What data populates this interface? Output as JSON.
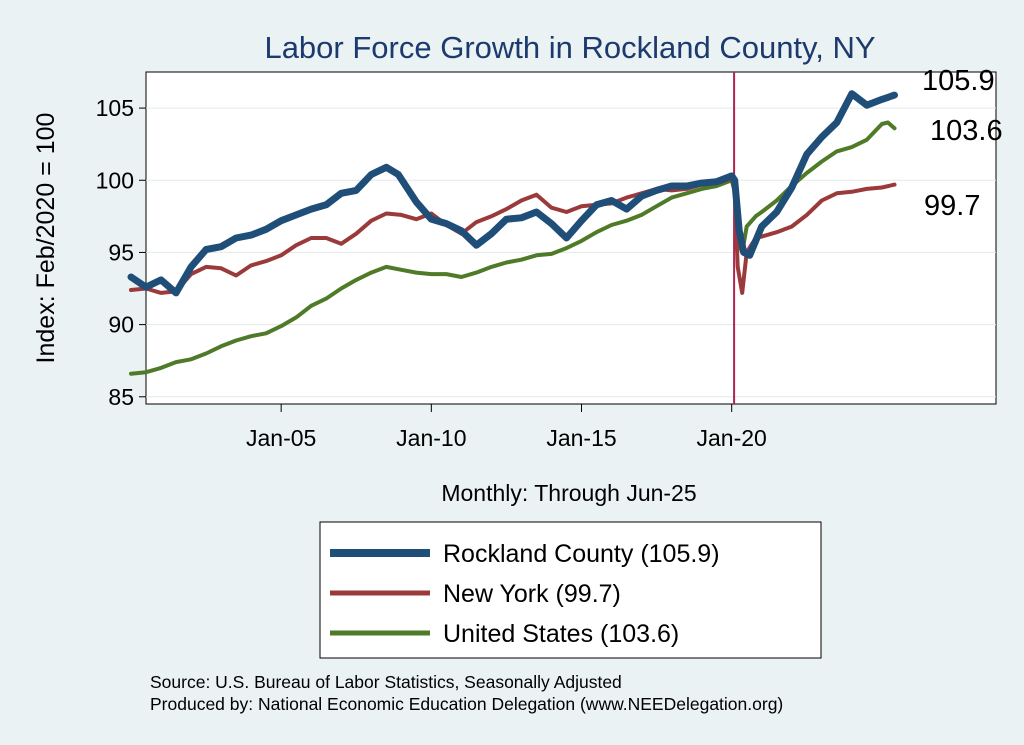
{
  "chart_data": {
    "type": "line",
    "title": "Labor Force Growth in Rockland  County, NY",
    "ylabel": "Index: Feb/2020 = 100",
    "xlabel": "Monthly: Through Jun-25",
    "ylim": [
      84.5,
      107.5
    ],
    "yticks": [
      85,
      90,
      95,
      100,
      105
    ],
    "xlim": [
      2000.5,
      2028.8
    ],
    "xticks": [
      {
        "x": 2005,
        "label": "Jan-05"
      },
      {
        "x": 2010,
        "label": "Jan-10"
      },
      {
        "x": 2015,
        "label": "Jan-15"
      },
      {
        "x": 2020,
        "label": "Jan-20"
      }
    ],
    "vline_x": 2020.08,
    "series": [
      {
        "name": "Rockland  County",
        "legend": "Rockland  County (105.9)",
        "end_label": "105.9",
        "color": "#1f4e79",
        "width": 7,
        "x": [
          2000.0,
          2000.5,
          2001.0,
          2001.5,
          2002.0,
          2002.5,
          2003.0,
          2003.5,
          2004.0,
          2004.5,
          2005.0,
          2005.5,
          2006.0,
          2006.5,
          2007.0,
          2007.5,
          2008.0,
          2008.5,
          2008.9,
          2009.5,
          2010.0,
          2010.5,
          2011.0,
          2011.5,
          2012.0,
          2012.5,
          2013.0,
          2013.5,
          2014.0,
          2014.5,
          2015.0,
          2015.5,
          2016.0,
          2016.5,
          2017.0,
          2017.5,
          2018.0,
          2018.5,
          2019.0,
          2019.5,
          2020.0,
          2020.1,
          2020.25,
          2020.4,
          2020.6,
          2021.0,
          2021.5,
          2022.0,
          2022.5,
          2023.0,
          2023.5,
          2024.0,
          2024.5,
          2025.0,
          2025.42
        ],
        "values": [
          93.3,
          92.6,
          93.1,
          92.2,
          94.0,
          95.2,
          95.4,
          96.0,
          96.2,
          96.6,
          97.2,
          97.6,
          98.0,
          98.3,
          99.1,
          99.3,
          100.4,
          100.9,
          100.4,
          98.5,
          97.3,
          97.0,
          96.5,
          95.5,
          96.3,
          97.3,
          97.4,
          97.8,
          97.0,
          96.0,
          97.2,
          98.3,
          98.6,
          98.0,
          98.9,
          99.3,
          99.6,
          99.6,
          99.8,
          99.9,
          100.3,
          100.0,
          96.5,
          95.0,
          94.8,
          96.8,
          97.8,
          99.5,
          101.8,
          103.0,
          104.0,
          106.0,
          105.2,
          105.6,
          105.9
        ]
      },
      {
        "name": "New York",
        "legend": "New York (99.7)",
        "end_label": "99.7",
        "color": "#9b3a3a",
        "width": 4,
        "x": [
          2000.0,
          2000.5,
          2001.0,
          2001.5,
          2002.0,
          2002.5,
          2003.0,
          2003.5,
          2004.0,
          2004.5,
          2005.0,
          2005.5,
          2006.0,
          2006.5,
          2007.0,
          2007.5,
          2008.0,
          2008.5,
          2009.0,
          2009.5,
          2010.0,
          2010.5,
          2011.0,
          2011.5,
          2012.0,
          2012.5,
          2013.0,
          2013.5,
          2014.0,
          2014.5,
          2015.0,
          2015.5,
          2016.0,
          2016.5,
          2017.0,
          2017.5,
          2018.0,
          2018.5,
          2019.0,
          2019.5,
          2020.0,
          2020.1,
          2020.2,
          2020.35,
          2020.5,
          2020.8,
          2021.0,
          2021.5,
          2022.0,
          2022.5,
          2023.0,
          2023.5,
          2024.0,
          2024.5,
          2025.0,
          2025.42
        ],
        "values": [
          92.4,
          92.5,
          92.2,
          92.3,
          93.5,
          94.0,
          93.9,
          93.4,
          94.1,
          94.4,
          94.8,
          95.5,
          96.0,
          96.0,
          95.6,
          96.3,
          97.2,
          97.7,
          97.6,
          97.3,
          97.7,
          96.9,
          96.3,
          97.1,
          97.5,
          98.0,
          98.6,
          99.0,
          98.1,
          97.8,
          98.2,
          98.3,
          98.4,
          98.8,
          99.1,
          99.4,
          99.3,
          99.4,
          99.7,
          99.8,
          100.1,
          99.5,
          94.0,
          92.2,
          95.0,
          96.0,
          96.1,
          96.4,
          96.8,
          97.6,
          98.6,
          99.1,
          99.2,
          99.4,
          99.5,
          99.7
        ]
      },
      {
        "name": "United States",
        "legend": "United States (103.6)",
        "end_label": "103.6",
        "color": "#4f7a28",
        "width": 4,
        "x": [
          2000.0,
          2000.5,
          2001.0,
          2001.5,
          2002.0,
          2002.5,
          2003.0,
          2003.5,
          2004.0,
          2004.5,
          2005.0,
          2005.5,
          2006.0,
          2006.5,
          2007.0,
          2007.5,
          2008.0,
          2008.5,
          2009.0,
          2009.5,
          2010.0,
          2010.5,
          2011.0,
          2011.5,
          2012.0,
          2012.5,
          2013.0,
          2013.5,
          2014.0,
          2014.5,
          2015.0,
          2015.5,
          2016.0,
          2016.5,
          2017.0,
          2017.5,
          2018.0,
          2018.5,
          2019.0,
          2019.5,
          2020.0,
          2020.1,
          2020.2,
          2020.35,
          2020.5,
          2020.8,
          2021.0,
          2021.5,
          2022.0,
          2022.5,
          2023.0,
          2023.5,
          2024.0,
          2024.5,
          2025.0,
          2025.2,
          2025.42
        ],
        "values": [
          86.6,
          86.7,
          87.0,
          87.4,
          87.6,
          88.0,
          88.5,
          88.9,
          89.2,
          89.4,
          89.9,
          90.5,
          91.3,
          91.8,
          92.5,
          93.1,
          93.6,
          94.0,
          93.8,
          93.6,
          93.5,
          93.5,
          93.3,
          93.6,
          94.0,
          94.3,
          94.5,
          94.8,
          94.9,
          95.3,
          95.8,
          96.4,
          96.9,
          97.2,
          97.6,
          98.2,
          98.8,
          99.1,
          99.4,
          99.6,
          100.0,
          99.2,
          95.8,
          95.0,
          96.8,
          97.5,
          97.8,
          98.6,
          99.6,
          100.5,
          101.3,
          102.0,
          102.3,
          102.8,
          103.9,
          104.0,
          103.6
        ]
      }
    ]
  },
  "footer": {
    "source": "Source: U.S. Bureau of Labor Statistics, Seasonally Adjusted",
    "produced_by": "Produced by: National Economic Education Delegation (www.NEEDelegation.org)"
  }
}
